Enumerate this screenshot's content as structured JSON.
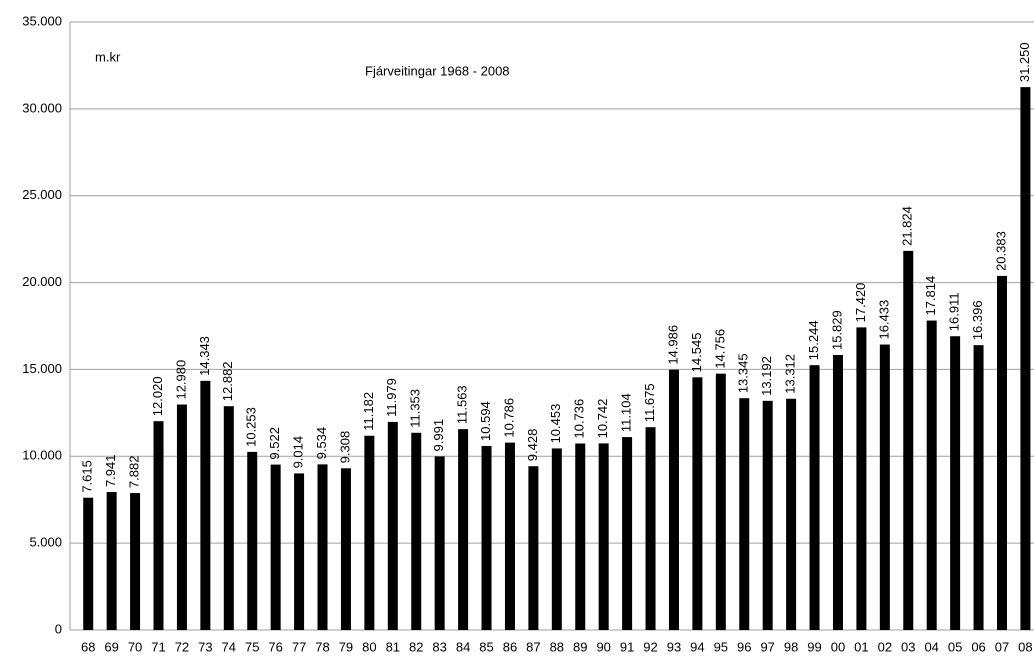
{
  "chart_data": {
    "type": "bar",
    "title": "Fjárveitingar 1968 - 2008",
    "annotation": "m.kr",
    "categories": [
      "68",
      "69",
      "70",
      "71",
      "72",
      "73",
      "74",
      "75",
      "76",
      "77",
      "78",
      "79",
      "80",
      "81",
      "82",
      "83",
      "84",
      "85",
      "86",
      "87",
      "88",
      "89",
      "90",
      "91",
      "92",
      "93",
      "94",
      "95",
      "96",
      "97",
      "98",
      "99",
      "00",
      "01",
      "02",
      "03",
      "04",
      "05",
      "06",
      "07",
      "08"
    ],
    "values": [
      7615,
      7941,
      7882,
      12020,
      12980,
      14343,
      12882,
      10253,
      9522,
      9014,
      9534,
      9308,
      11182,
      11979,
      11353,
      9991,
      11563,
      10594,
      10786,
      9428,
      10453,
      10736,
      10742,
      11104,
      11675,
      14986,
      14545,
      14756,
      13345,
      13192,
      13312,
      15244,
      15829,
      17420,
      16433,
      21824,
      17814,
      16911,
      16396,
      20383,
      31250
    ],
    "value_labels": [
      "7.615",
      "7.941",
      "7.882",
      "12.020",
      "12.980",
      "14.343",
      "12.882",
      "10.253",
      "9.522",
      "9.014",
      "9.534",
      "9.308",
      "11.182",
      "11.979",
      "11.353",
      "9.991",
      "11.563",
      "10.594",
      "10.786",
      "9.428",
      "10.453",
      "10.736",
      "10.742",
      "11.104",
      "11.675",
      "14.986",
      "14.545",
      "14.756",
      "13.345",
      "13.192",
      "13.312",
      "15.244",
      "15.829",
      "17.420",
      "16.433",
      "21.824",
      "17.814",
      "16.911",
      "16.396",
      "20.383",
      "31.250"
    ],
    "color": "#000000",
    "ylim": [
      0,
      35000
    ],
    "yticks": [
      0,
      {
        "value": 5000,
        "label": "5.000"
      },
      {
        "value": 10000,
        "label": "10.000"
      },
      {
        "value": 15000,
        "label": "15.000"
      },
      {
        "value": 20000,
        "label": "20.000"
      },
      {
        "value": 25000,
        "label": "25.000"
      },
      {
        "value": 30000,
        "label": "30.000"
      },
      {
        "value": 35000,
        "label": "35.000"
      }
    ],
    "grid": true
  }
}
